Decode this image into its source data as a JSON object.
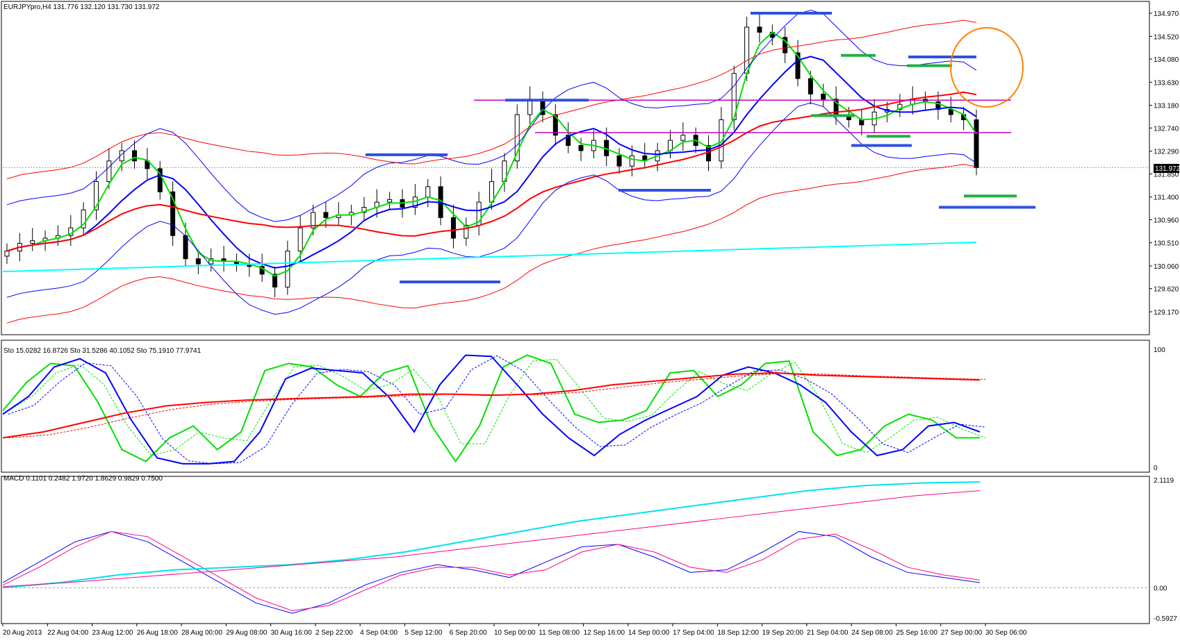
{
  "colors": {
    "background": "#ffffff",
    "frame": "#000000",
    "candle": "#000000",
    "sma_green": "#00e000",
    "sma_blue": "#0000ff",
    "ma_red": "#ff0000",
    "long_cyan": "#00ffff",
    "resistance_line": "#c000c0",
    "marker_blue": "#3050e0",
    "marker_green": "#20b040",
    "circle": "#ff8000",
    "macd_main": "#0000ff",
    "macd_signal": "#ff0080"
  },
  "price_panel": {
    "label": "EURJPYpro,H4  131.776 132.120 131.730 131.972",
    "current_price": "131.972"
  },
  "stoch_panel": {
    "label": "Sto 15.0282 16.8726  Sto 31.5286 40.1052  Sto 75.1910 77.9741"
  },
  "macd_panel": {
    "label": "MACD 0.1101 0.2482 1.9720 1.8629 0.9829 0.7500"
  },
  "chart_data": [
    {
      "type": "candlestick",
      "title": "EURJPYpro,H4",
      "ohlc_header": [
        131.776,
        132.12,
        131.73,
        131.972
      ],
      "ylim": [
        129.17,
        134.97
      ],
      "y_ticks": [
        "134.970",
        "134.520",
        "134.080",
        "133.630",
        "133.180",
        "132.740",
        "132.290",
        "131.850",
        "131.400",
        "130.960",
        "130.510",
        "130.060",
        "129.620",
        "129.170"
      ],
      "x_ticks": [
        "20 Aug 2013",
        "22 Aug 04:00",
        "23 Aug 12:00",
        "26 Aug 18:00",
        "28 Aug 00:00",
        "29 Aug 08:00",
        "30 Aug 16:00",
        "2 Sep 22:00",
        "4 Sep 04:00",
        "5 Sep 12:00",
        "6 Sep 20:00",
        "10 Sep 00:00",
        "11 Sep 08:00",
        "12 Sep 16:00",
        "14 Sep 00:00",
        "17 Sep 04:00",
        "18 Sep 12:00",
        "19 Sep 20:00",
        "21 Sep 04:00",
        "24 Sep 08:00",
        "25 Sep 16:00",
        "27 Sep 00:00",
        "30 Sep 06:00"
      ],
      "closes": [
        130.35,
        130.5,
        130.55,
        130.6,
        130.65,
        130.8,
        131.15,
        131.7,
        132.1,
        132.3,
        132.1,
        131.95,
        131.5,
        130.65,
        130.2,
        130.1,
        130.2,
        130.15,
        130.1,
        130.05,
        129.9,
        129.65,
        130.35,
        130.8,
        131.1,
        131.0,
        131.05,
        131.1,
        131.2,
        131.3,
        131.35,
        131.2,
        131.4,
        131.6,
        131.0,
        130.6,
        130.85,
        131.3,
        131.7,
        132.1,
        133.0,
        133.3,
        133.0,
        132.6,
        132.4,
        132.3,
        132.5,
        132.2,
        132.0,
        132.2,
        132.1,
        132.3,
        132.5,
        132.6,
        132.4,
        132.1,
        132.9,
        133.8,
        134.7,
        134.6,
        134.5,
        134.2,
        133.7,
        133.4,
        133.3,
        133.0,
        132.9,
        132.8,
        133.05,
        133.1,
        133.2,
        133.3,
        133.25,
        133.1,
        133.0,
        132.9,
        131.972
      ],
      "resistance_levels": [
        133.28,
        132.65
      ],
      "series_lines": [
        "moving averages",
        "bollinger bands"
      ],
      "current_price": 131.972
    },
    {
      "type": "line",
      "title": "Sto",
      "ylim": [
        0,
        100
      ],
      "y_ticks": [
        "100",
        "0"
      ],
      "series": [
        {
          "name": "Sto fast",
          "values": [
            48,
            72,
            88,
            86,
            55,
            15,
            5,
            25,
            35,
            15,
            30,
            82,
            88,
            85,
            70,
            60,
            80,
            86,
            35,
            5,
            35,
            85,
            95,
            88,
            45,
            38,
            40,
            48,
            80,
            82,
            60,
            70,
            88,
            90,
            30,
            10,
            15,
            35,
            45,
            40,
            25,
            25
          ]
        },
        {
          "name": "Sto medium",
          "values": [
            45,
            60,
            85,
            92,
            80,
            40,
            8,
            3,
            3,
            5,
            30,
            75,
            84,
            82,
            80,
            60,
            30,
            70,
            95,
            94,
            70,
            45,
            25,
            10,
            28,
            40,
            50,
            60,
            78,
            85,
            80,
            70,
            55,
            30,
            10,
            15,
            35,
            38,
            30
          ]
        },
        {
          "name": "Sto slow",
          "values": [
            25,
            30,
            38,
            46,
            52,
            55,
            57,
            58,
            59,
            60,
            62,
            62,
            61,
            62,
            65,
            70,
            73,
            76,
            79,
            80,
            78,
            77,
            76,
            75,
            74
          ]
        }
      ]
    },
    {
      "type": "line",
      "title": "MACD",
      "ylim": [
        -0.5927,
        2.1119
      ],
      "y_ticks": [
        "2.1119",
        "0.00",
        "-0.5927"
      ],
      "series": [
        {
          "name": "MACD fast",
          "values": [
            0.1,
            0.5,
            0.9,
            1.1,
            0.9,
            0.5,
            0.1,
            -0.3,
            -0.5,
            -0.3,
            0.05,
            0.3,
            0.45,
            0.35,
            0.2,
            0.5,
            0.8,
            0.85,
            0.6,
            0.3,
            0.35,
            0.7,
            1.1,
            1.0,
            0.6,
            0.3,
            0.2,
            0.1
          ]
        },
        {
          "name": "MACD slow",
          "values": [
            0.05,
            0.4,
            0.8,
            1.1,
            1.0,
            0.6,
            0.2,
            -0.2,
            -0.45,
            -0.35,
            -0.05,
            0.25,
            0.4,
            0.4,
            0.25,
            0.35,
            0.7,
            0.85,
            0.7,
            0.4,
            0.3,
            0.55,
            0.95,
            1.05,
            0.75,
            0.4,
            0.25,
            0.15
          ]
        },
        {
          "name": "MACD trend",
          "values": [
            0.0,
            0.1,
            0.25,
            0.35,
            0.4,
            0.45,
            0.55,
            0.7,
            0.9,
            1.1,
            1.3,
            1.45,
            1.6,
            1.75,
            1.9,
            2.0,
            2.05,
            2.07
          ]
        },
        {
          "name": "MACD trend signal",
          "values": [
            0.02,
            0.1,
            0.2,
            0.3,
            0.4,
            0.5,
            0.6,
            0.75,
            0.9,
            1.05,
            1.2,
            1.35,
            1.5,
            1.65,
            1.8,
            1.9
          ]
        }
      ]
    }
  ]
}
